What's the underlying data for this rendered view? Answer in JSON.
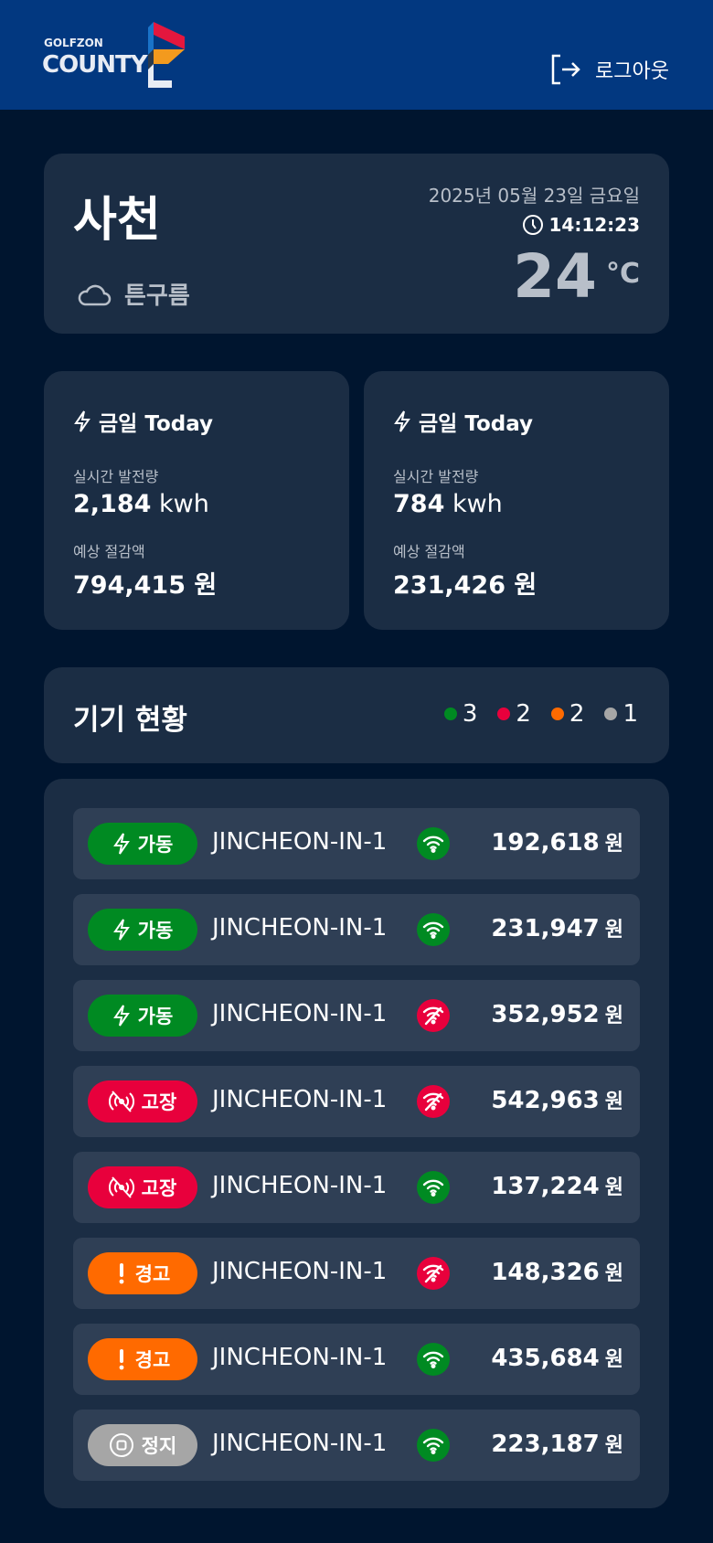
{
  "header": {
    "brand_top": "GOLFZON",
    "brand_main": "COUNTY",
    "logout_label": "로그아웃"
  },
  "weather": {
    "city": "사천",
    "condition": "튼구름",
    "date": "2025년 05월 23일 금요일",
    "time": "14:12:23",
    "temperature": "24",
    "unit": "°C"
  },
  "power_cards": [
    {
      "title": "금일 Today",
      "realtime_label": "실시간 발전량",
      "realtime_value": "2,184",
      "realtime_unit": "kwh",
      "savings_label": "예상 절감액",
      "savings_value": "794,415",
      "savings_unit": "원"
    },
    {
      "title": "금일 Today",
      "realtime_label": "실시간 발전량",
      "realtime_value": "784",
      "realtime_unit": "kwh",
      "savings_label": "예상 절감액",
      "savings_value": "231,426",
      "savings_unit": "원"
    }
  ],
  "devices": {
    "title": "기기 현황",
    "legend": [
      {
        "color": "#008a22",
        "count": "3"
      },
      {
        "color": "#e8003c",
        "count": "2"
      },
      {
        "color": "#ff6a00",
        "count": "2"
      },
      {
        "color": "#a6a6a6",
        "count": "1"
      }
    ],
    "status_colors": {
      "running": "#008a22",
      "fault": "#e8003c",
      "warning": "#ff6a00",
      "stopped": "#a6a6a6"
    },
    "rows": [
      {
        "status": "running",
        "icon": "bolt-icon",
        "label": "가동",
        "name": "JINCHEON-IN-1",
        "wifi": "online",
        "amount": "192,618",
        "unit": "원"
      },
      {
        "status": "running",
        "icon": "bolt-icon",
        "label": "가동",
        "name": "JINCHEON-IN-1",
        "wifi": "online",
        "amount": "231,947",
        "unit": "원"
      },
      {
        "status": "running",
        "icon": "bolt-icon",
        "label": "가동",
        "name": "JINCHEON-IN-1",
        "wifi": "offline",
        "amount": "352,952",
        "unit": "원"
      },
      {
        "status": "fault",
        "icon": "signal-off-icon",
        "label": "고장",
        "name": "JINCHEON-IN-1",
        "wifi": "offline",
        "amount": "542,963",
        "unit": "원"
      },
      {
        "status": "fault",
        "icon": "signal-off-icon",
        "label": "고장",
        "name": "JINCHEON-IN-1",
        "wifi": "online",
        "amount": "137,224",
        "unit": "원"
      },
      {
        "status": "warning",
        "icon": "exclamation-icon",
        "label": "경고",
        "name": "JINCHEON-IN-1",
        "wifi": "offline",
        "amount": "148,326",
        "unit": "원"
      },
      {
        "status": "warning",
        "icon": "exclamation-icon",
        "label": "경고",
        "name": "JINCHEON-IN-1",
        "wifi": "online",
        "amount": "435,684",
        "unit": "원"
      },
      {
        "status": "stopped",
        "icon": "stop-icon",
        "label": "정지",
        "name": "JINCHEON-IN-1",
        "wifi": "online",
        "amount": "223,187",
        "unit": "원"
      }
    ]
  }
}
